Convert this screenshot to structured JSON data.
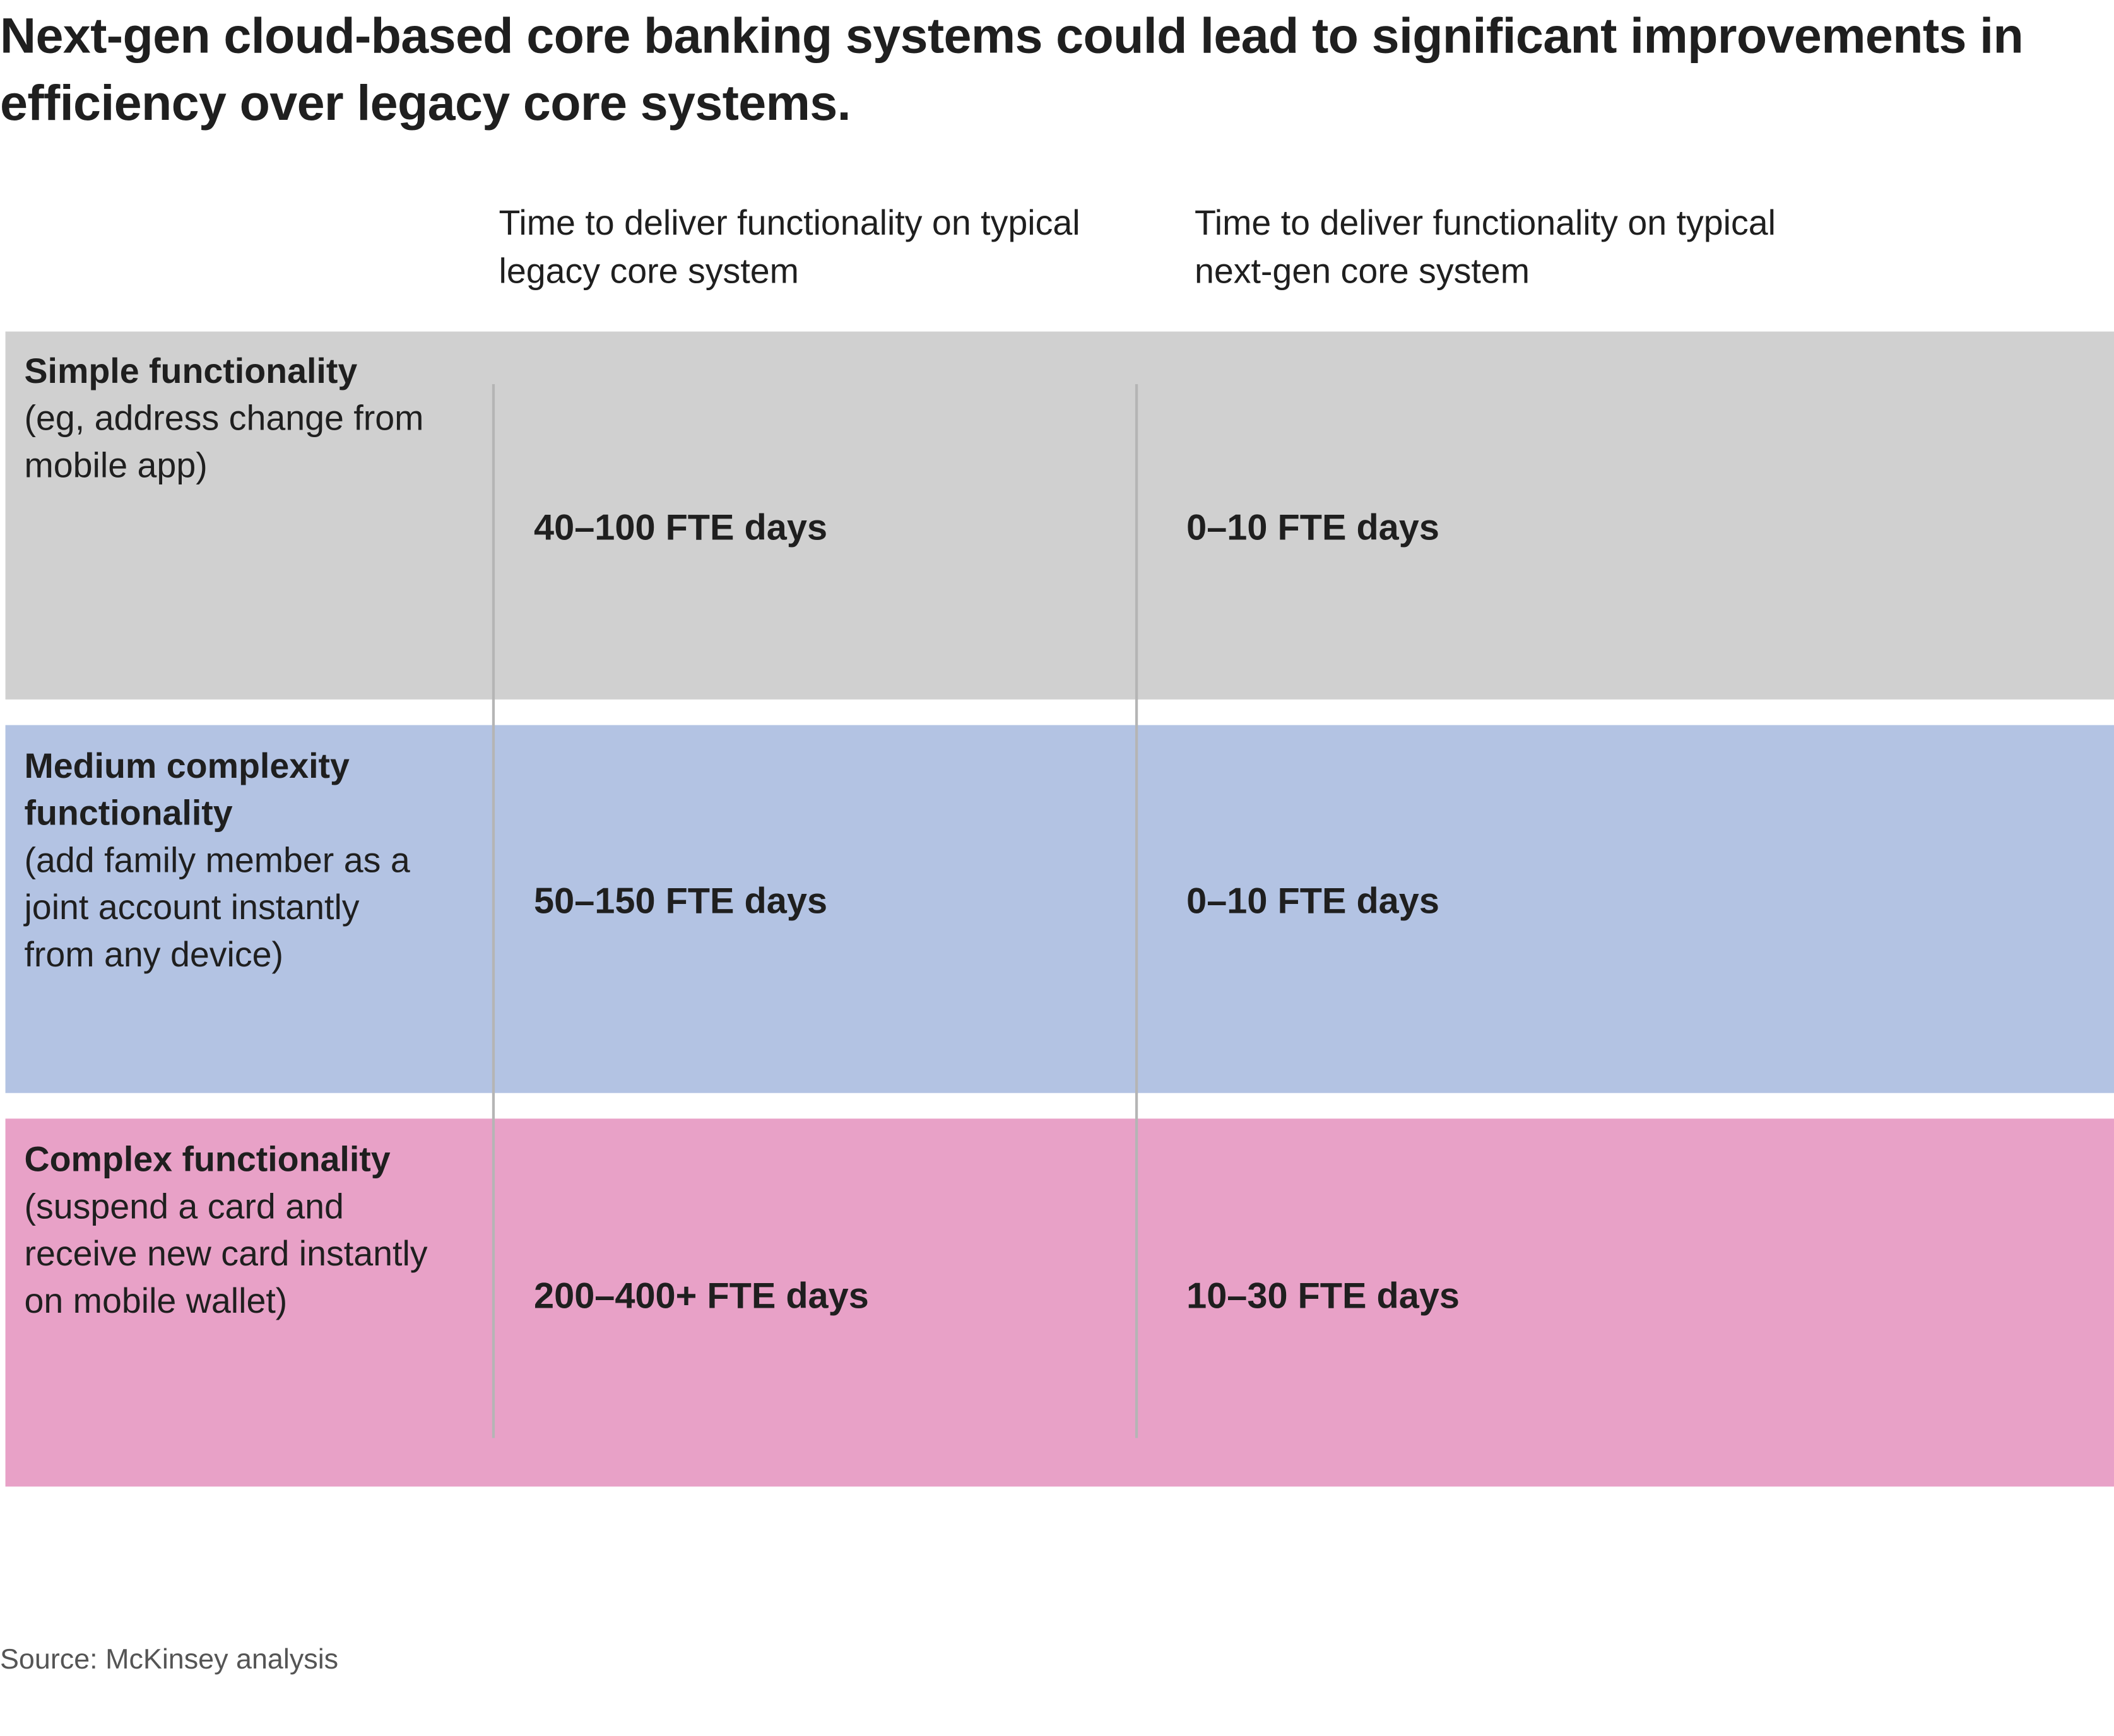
{
  "title": "Next-gen cloud-based core banking systems could lead to significant improvements in efficiency over legacy core systems.",
  "columns": [
    "Time to deliver functionality on typical legacy core system",
    "Time to deliver functionality on typical next-gen core system"
  ],
  "rows": [
    {
      "name": "Simple functionality",
      "description": "(eg, address change from mobile app)",
      "legacy": "40–100 FTE days",
      "next_gen": "0–10 FTE days"
    },
    {
      "name": "Medium complexity functionality",
      "description": "(add family member as a joint account instantly from any device)",
      "legacy": "50–150 FTE days",
      "next_gen": "0–10 FTE days"
    },
    {
      "name": "Complex functionality",
      "description": "(suspend a card and receive new card instantly on mobile wallet)",
      "legacy": "200–400+ FTE days",
      "next_gen": "10–30 FTE days"
    }
  ],
  "source": "Source: McKinsey analysis"
}
